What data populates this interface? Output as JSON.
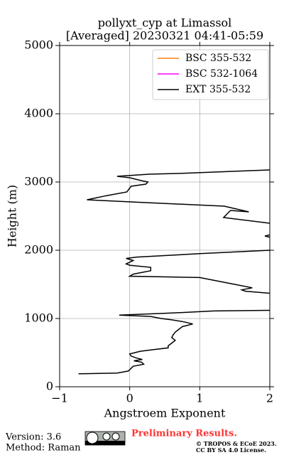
{
  "chart_data": {
    "type": "line",
    "title": "pollyxt_cyp at Limassol",
    "subtitle": "[Averaged] 20230321 04:41-05:59",
    "xlabel": "Angstroem Exponent",
    "ylabel": "Height (m)",
    "xlim": [
      -1,
      2
    ],
    "ylim": [
      0,
      5000
    ],
    "xticks": [
      {
        "value": -1,
        "label": "−1"
      },
      0,
      1,
      2
    ],
    "yticks": [
      0,
      1000,
      2000,
      3000,
      4000,
      5000
    ],
    "grid": true,
    "legend": "upper right",
    "series": [
      {
        "name": "BSC 355-532",
        "color": "#ff7f0e",
        "x": [],
        "y": []
      },
      {
        "name": "BSC 532-1064",
        "color": "#ff00ff",
        "x": [],
        "y": []
      },
      {
        "name": "EXT 355-532",
        "color": "#000000",
        "x": [
          -0.73,
          -0.18,
          -0.02,
          0.05,
          0.2,
          0.17,
          0.06,
          0.18,
          0.1,
          0.02,
          0.0,
          0.15,
          0.3,
          0.55,
          0.55,
          0.6,
          0.65,
          0.6,
          0.62,
          0.65,
          0.7,
          0.75,
          0.9,
          0.78,
          0.6,
          0.45,
          0.3,
          -0.15,
          0.6,
          1.2,
          2.0,
          null,
          2.0,
          1.65,
          1.6,
          1.75,
          1.5,
          1.0,
          0.0,
          0.05,
          0.3,
          0.3,
          0.0,
          -0.05,
          0.05,
          -0.05,
          0.1,
          1.0,
          2.0,
          null,
          2.0,
          1.93,
          2.0,
          null,
          2.0,
          1.34,
          1.44,
          1.7,
          1.35,
          0.02,
          -0.61,
          -0.33,
          -0.04,
          0.02,
          0.23,
          0.26,
          0.17,
          0.0,
          -0.18,
          0.28,
          0.68,
          2.0
        ],
        "y": [
          190,
          200,
          230,
          300,
          330,
          360,
          380,
          400,
          420,
          450,
          480,
          520,
          540,
          570,
          600,
          640,
          680,
          720,
          760,
          800,
          840,
          880,
          920,
          950,
          980,
          1000,
          1030,
          1050,
          1080,
          1110,
          1120,
          null,
          1370,
          1400,
          1420,
          1450,
          1500,
          1600,
          1620,
          1650,
          1700,
          1750,
          1780,
          1800,
          1850,
          1880,
          1900,
          1950,
          2000,
          null,
          2190,
          2208,
          2225,
          null,
          2396,
          2479,
          2583,
          2562,
          2646,
          2708,
          2740,
          2800,
          2854,
          2938,
          2969,
          3000,
          3020,
          3062,
          3083,
          3115,
          3125,
          3177
        ]
      }
    ],
    "footer": {
      "version": "Version: 3.6",
      "method": "Method: Raman",
      "status": "Preliminary Results.",
      "copyright": "© TROPOS & ECoE 2023.",
      "license": "CC BY SA 4.0 License."
    }
  }
}
